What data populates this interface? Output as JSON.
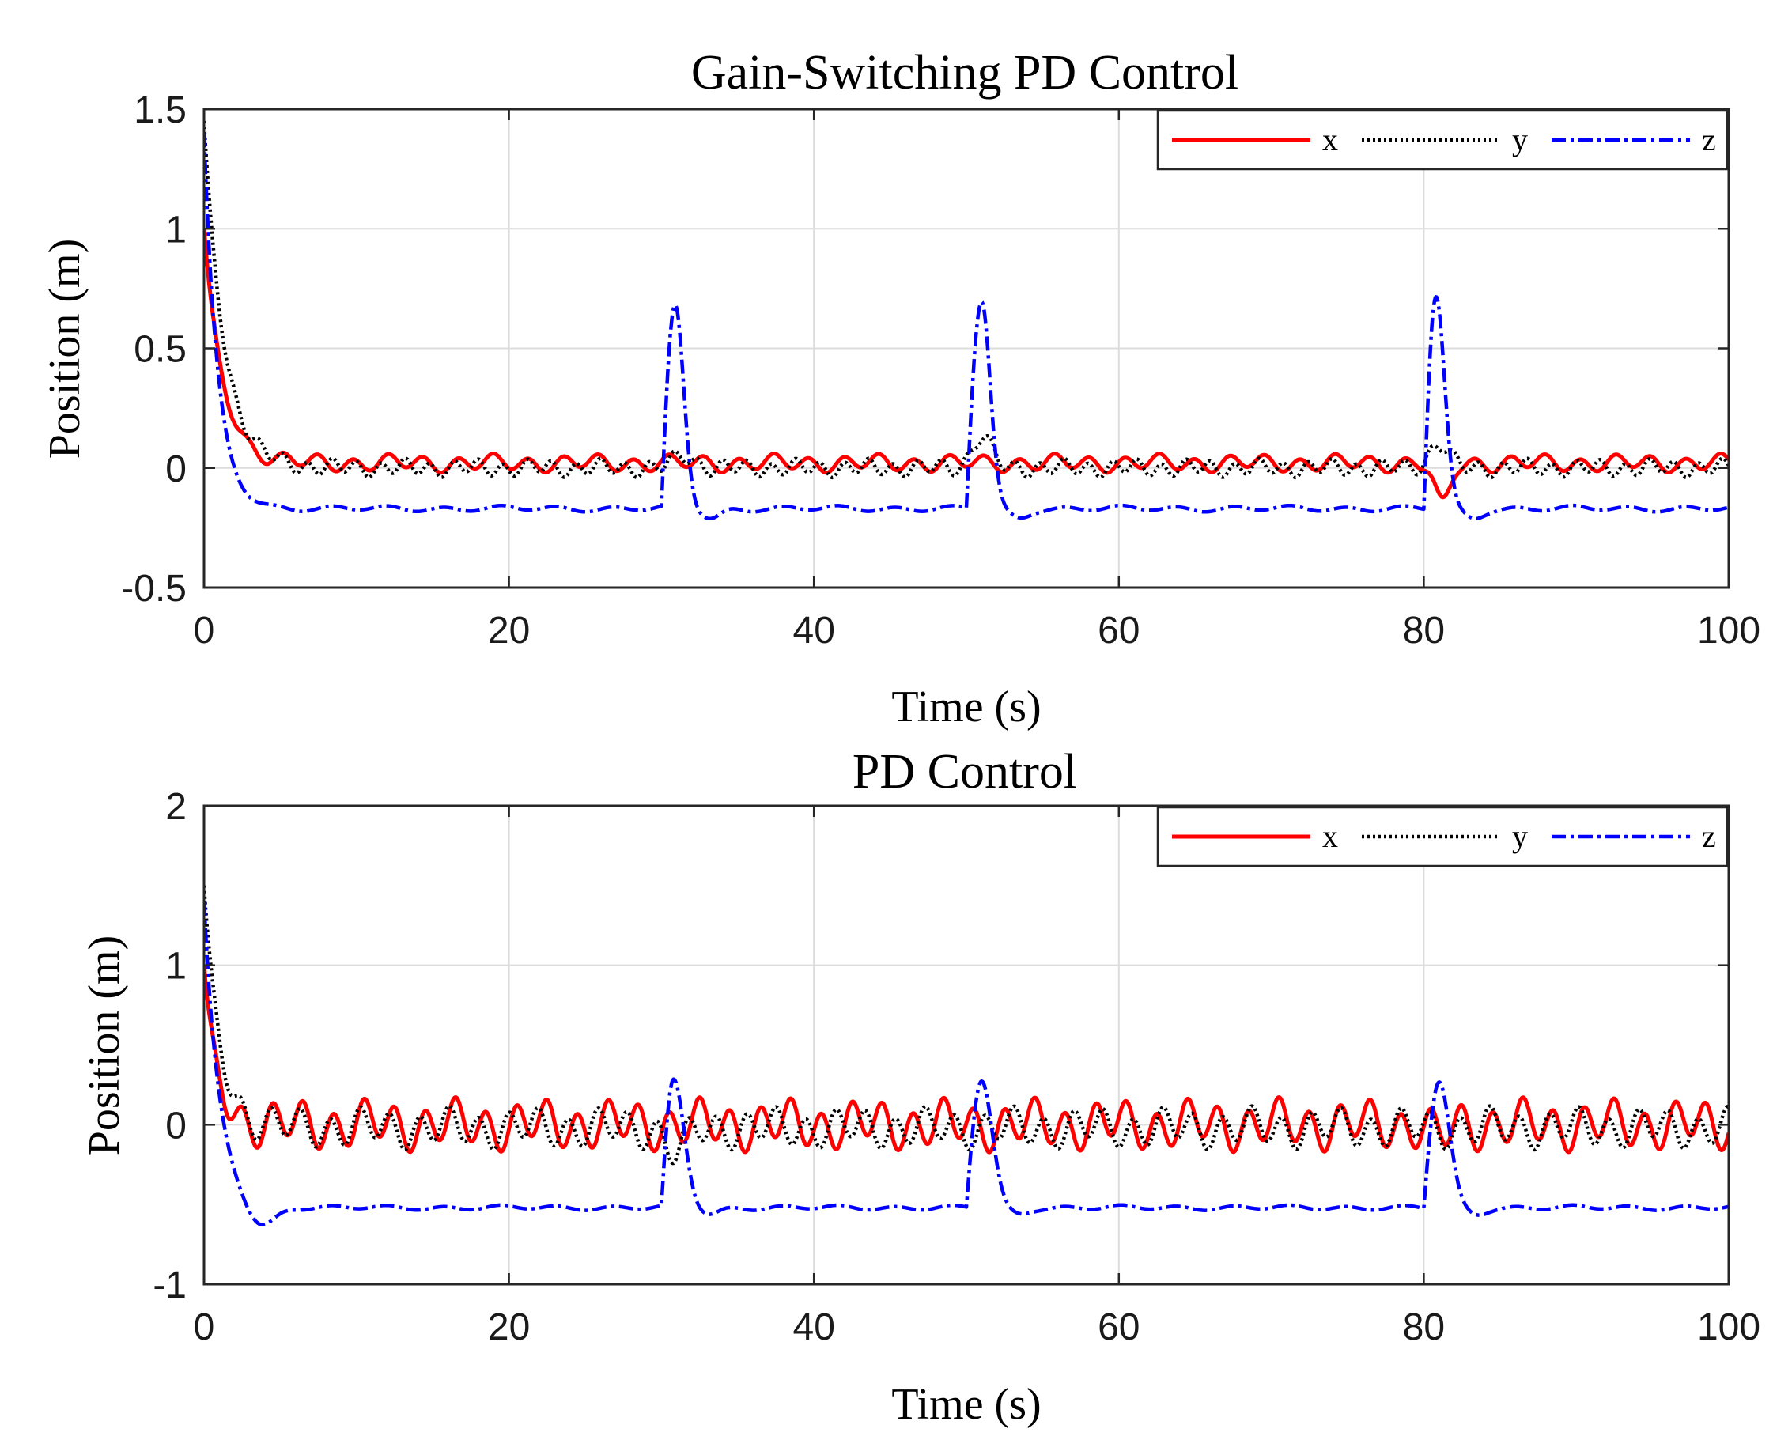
{
  "chart_data": [
    {
      "type": "line",
      "title": "Gain-Switching PD Control",
      "xlabel": "Time (s)",
      "ylabel": "Position (m)",
      "xlim": [
        0,
        100
      ],
      "ylim": [
        -0.5,
        1.5
      ],
      "xticks": [
        0,
        20,
        40,
        60,
        80,
        100
      ],
      "xtick_labels": [
        "0",
        "20",
        "40",
        "60",
        "80",
        "100"
      ],
      "yticks": [
        -0.5,
        0,
        0.5,
        1,
        1.5
      ],
      "ytick_labels": [
        "-0.5",
        "0",
        "0.5",
        "1",
        "1.5"
      ],
      "grid": true,
      "legend_position": "top-right",
      "series": [
        {
          "name": "x",
          "color": "#ff0000",
          "style": "solid",
          "initial": 1.0,
          "decay": 1.2,
          "settle_mean": 0.02,
          "osc_amp": 0.035,
          "osc_period": 2.3,
          "spikes": [
            {
              "t": 81.2,
              "amp": -0.18,
              "width": 0.7
            }
          ]
        },
        {
          "name": "y",
          "color": "#000000",
          "style": "dotted",
          "initial": 1.45,
          "decay": 1.3,
          "settle_mean": 0.0,
          "osc_amp": 0.035,
          "osc_period": 1.6,
          "spikes": [
            {
              "t": 31.5,
              "amp": 0.05,
              "width": 1.0
            },
            {
              "t": 51.0,
              "amp": 0.13,
              "width": 0.9
            },
            {
              "t": 81.0,
              "amp": 0.1,
              "width": 0.9
            }
          ]
        },
        {
          "name": "z",
          "color": "#0000ff",
          "style": "dashdot",
          "initial": 1.4,
          "decay": 0.9,
          "settle_mean": -0.17,
          "osc_amp": 0.012,
          "osc_period": 3.7,
          "peaks": [
            {
              "t_start": 30.0,
              "t_peak": 30.9,
              "peak": 0.67,
              "tau": 0.9
            },
            {
              "t_start": 50.0,
              "t_peak": 51.0,
              "peak": 0.7,
              "tau": 0.9
            },
            {
              "t_start": 80.0,
              "t_peak": 80.8,
              "peak": 0.72,
              "tau": 0.9
            }
          ]
        }
      ]
    },
    {
      "type": "line",
      "title": "PD Control",
      "xlabel": "Time (s)",
      "ylabel": "Position (m)",
      "xlim": [
        0,
        100
      ],
      "ylim": [
        -1,
        2
      ],
      "xticks": [
        0,
        20,
        40,
        60,
        80,
        100
      ],
      "xtick_labels": [
        "0",
        "20",
        "40",
        "60",
        "80",
        "100"
      ],
      "yticks": [
        -1,
        0,
        1,
        2
      ],
      "ytick_labels": [
        "-1",
        "0",
        "1",
        "2"
      ],
      "grid": true,
      "legend_position": "top-right",
      "series": [
        {
          "name": "x",
          "color": "#ff0000",
          "style": "solid",
          "initial": 1.0,
          "decay": 0.8,
          "settle_mean": 0.0,
          "osc_amp": 0.15,
          "osc_period": 2.0,
          "spikes": [
            {
              "t": 81.0,
              "amp": -0.08,
              "width": 0.8
            }
          ]
        },
        {
          "name": "y",
          "color": "#000000",
          "style": "dotted",
          "initial": 1.5,
          "decay": 1.0,
          "settle_mean": -0.02,
          "osc_amp": 0.12,
          "osc_period": 1.95,
          "spikes": [
            {
              "t": 31.0,
              "amp": -0.15,
              "width": 0.9
            }
          ]
        },
        {
          "name": "z",
          "color": "#0000ff",
          "style": "dashdot",
          "initial": 1.4,
          "decay": 1.0,
          "settle_mean": -0.52,
          "osc_amp": 0.015,
          "osc_period": 3.7,
          "dip": {
            "t": 3.7,
            "value": -0.67
          },
          "peaks": [
            {
              "t_start": 30.0,
              "t_peak": 30.8,
              "peak": 0.27,
              "tau": 1.1
            },
            {
              "t_start": 50.0,
              "t_peak": 51.0,
              "peak": 0.28,
              "tau": 1.1
            },
            {
              "t_start": 80.0,
              "t_peak": 81.0,
              "peak": 0.27,
              "tau": 1.1
            }
          ]
        }
      ]
    }
  ]
}
